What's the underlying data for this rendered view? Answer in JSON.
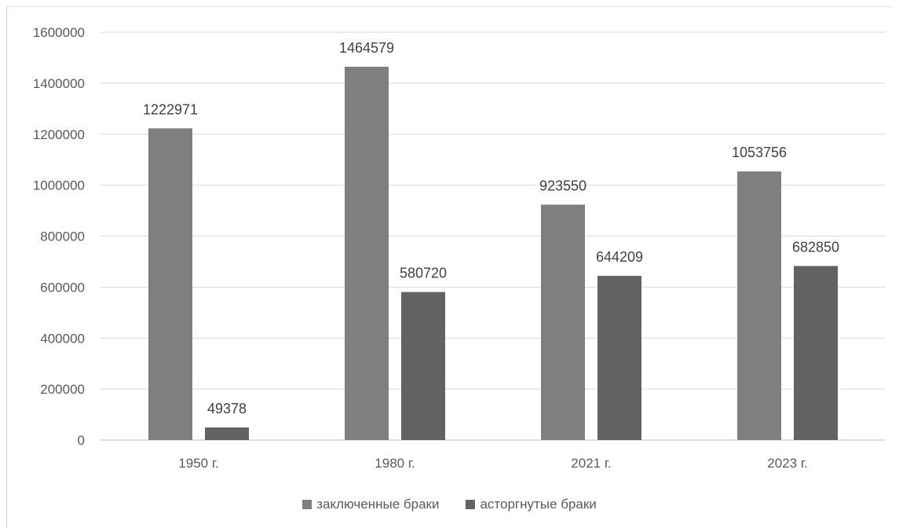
{
  "chart_data": {
    "type": "bar",
    "title": "",
    "xlabel": "",
    "ylabel": "",
    "categories": [
      "1950 г.",
      "1980 г.",
      "2021 г.",
      "2023 г."
    ],
    "series": [
      {
        "name": "заключенные браки",
        "values": [
          1222971,
          1464579,
          923550,
          1053756
        ],
        "color": "#7f7f7f"
      },
      {
        "name": "асторгнутые браки",
        "values": [
          49378,
          580720,
          644209,
          682850
        ],
        "color": "#636363"
      }
    ],
    "ylim": [
      0,
      1600000
    ],
    "yticks": [
      0,
      200000,
      400000,
      600000,
      800000,
      1000000,
      1200000,
      1400000,
      1600000
    ],
    "grid": true,
    "legend_position": "bottom"
  }
}
